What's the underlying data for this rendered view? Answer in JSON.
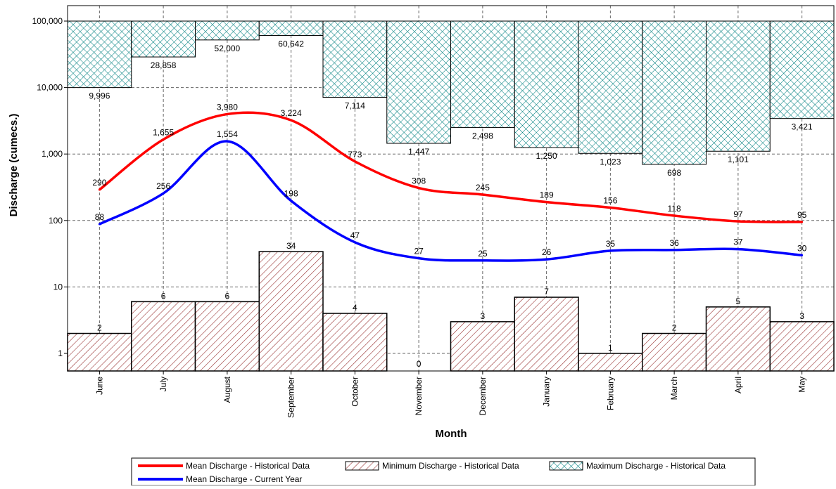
{
  "chart_data": {
    "type": "bar",
    "title": "",
    "xlabel": "Month",
    "ylabel": "Discharge (cumecs.)",
    "yscale": "log",
    "ylim": [
      0.6,
      180000
    ],
    "grid": true,
    "legend_position": "bottom",
    "categories": [
      "June",
      "July",
      "August",
      "September",
      "October",
      "November",
      "December",
      "January",
      "February",
      "March",
      "April",
      "May"
    ],
    "y_ticks": [
      1,
      10,
      100,
      1000,
      10000,
      100000
    ],
    "y_tick_labels": [
      "1",
      "10",
      "100",
      "1,000",
      "10,000",
      "100,000"
    ],
    "series": [
      {
        "name": "Mean Discharge - Historical Data",
        "kind": "line",
        "color": "#ff0000",
        "values": [
          290,
          1655,
          3980,
          3224,
          773,
          308,
          245,
          189,
          156,
          118,
          97,
          95
        ],
        "labels": [
          "290",
          "1,655",
          "3,980",
          "3,224",
          "773",
          "308",
          "245",
          "189",
          "156",
          "118",
          "97",
          "95"
        ]
      },
      {
        "name": "Mean Discharge - Current Year",
        "kind": "line",
        "color": "#0000ff",
        "values": [
          88,
          256,
          1554,
          198,
          47,
          27,
          25,
          26,
          35,
          36,
          37,
          30
        ],
        "labels": [
          "88",
          "256",
          "1,554",
          "198",
          "47",
          "27",
          "25",
          "26",
          "35",
          "36",
          "37",
          "30"
        ]
      },
      {
        "name": "Minimum Discharge - Historical Data",
        "kind": "bar",
        "color": "#993333",
        "pattern": "diagonal-hatch",
        "values": [
          2,
          6,
          6,
          34,
          4,
          0,
          3,
          7,
          1,
          2,
          5,
          3
        ],
        "labels": [
          "2",
          "6",
          "6",
          "34",
          "4",
          "0",
          "3",
          "7",
          "1",
          "2",
          "5",
          "3"
        ]
      },
      {
        "name": "Maximum Discharge - Historical Data",
        "kind": "bar-from-top",
        "color": "#008080",
        "pattern": "cross-hatch",
        "values": [
          9996,
          28858,
          52000,
          60642,
          7114,
          1447,
          2498,
          1250,
          1023,
          698,
          1101,
          3421
        ],
        "labels": [
          "9,996",
          "28,858",
          "52,000",
          "60,642",
          "7,114",
          "1,447",
          "2,498",
          "1,250",
          "1,023",
          "698",
          "1,101",
          "3,421"
        ]
      }
    ]
  }
}
